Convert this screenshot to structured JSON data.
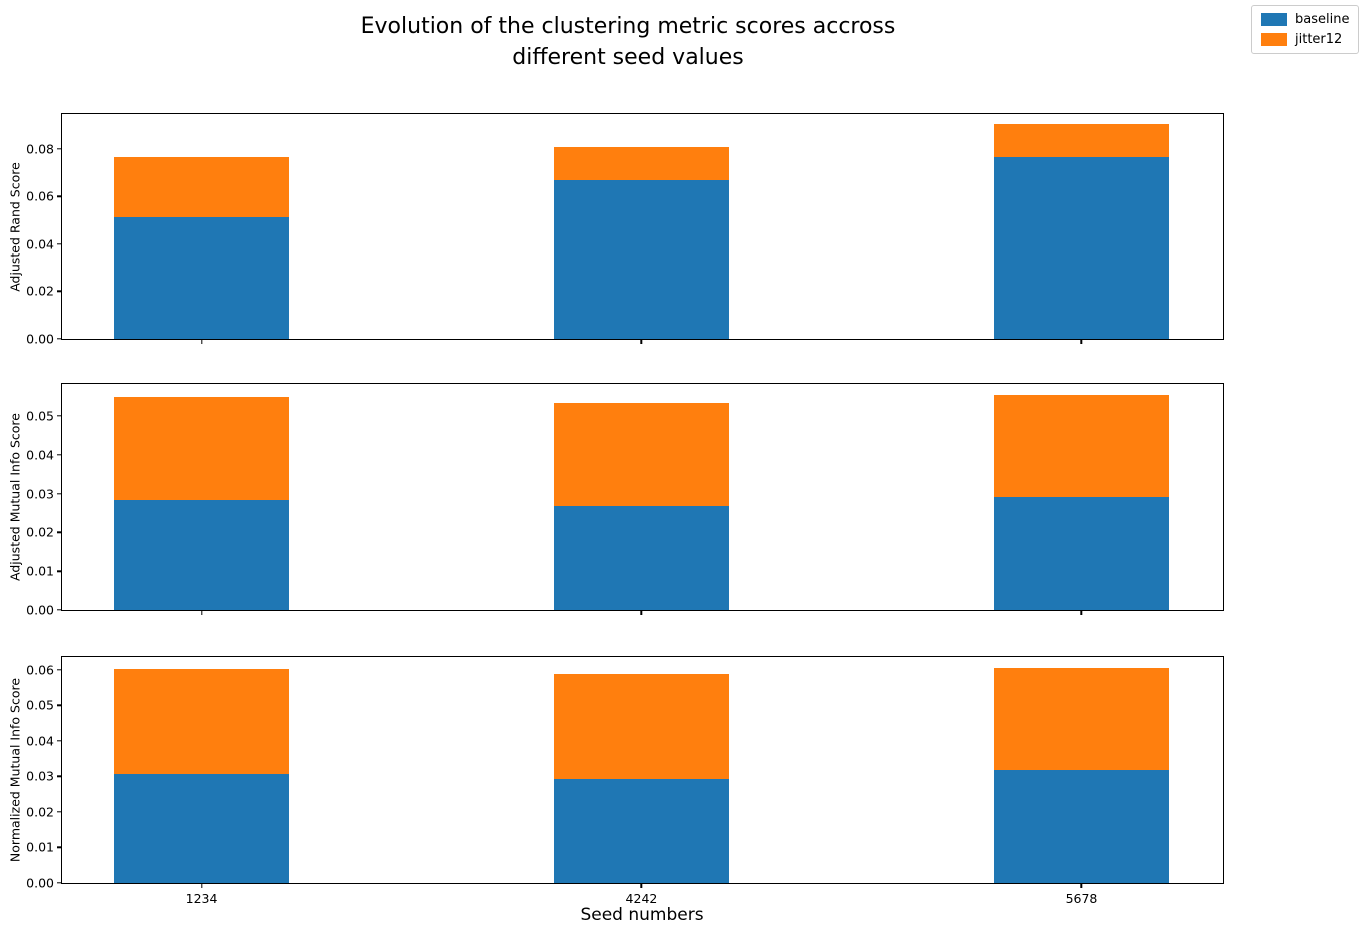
{
  "title": "Evolution of the clustering metric scores accross\ndifferent seed values",
  "xlabel": "Seed numbers",
  "legend": {
    "position": "upper-right-outside",
    "items": [
      {
        "label": "baseline",
        "color": "#1f77b4"
      },
      {
        "label": "jitter12",
        "color": "#ff7f0e"
      }
    ]
  },
  "chart_data": [
    {
      "type": "bar",
      "stacked": true,
      "ylabel": "Adjusted Rand Score",
      "xlabel": "",
      "categories": [
        "1234",
        "4242",
        "5678"
      ],
      "series": [
        {
          "name": "baseline",
          "color": "#1f77b4",
          "values": [
            0.0513,
            0.0669,
            0.0765
          ]
        },
        {
          "name": "jitter12",
          "color": "#ff7f0e",
          "values": [
            0.025,
            0.0139,
            0.0138
          ]
        }
      ],
      "stack_totals": [
        0.0763,
        0.0808,
        0.0903
      ],
      "ytick_values": [
        0,
        0.02,
        0.04,
        0.06,
        0.08
      ],
      "ytick_labels": [
        "0.00",
        "0.02",
        "0.04",
        "0.06",
        "0.08"
      ],
      "ylim": [
        0,
        0.0945
      ],
      "grid": false,
      "show_x_tick_labels": false
    },
    {
      "type": "bar",
      "stacked": true,
      "ylabel": "Adjusted Mutual Info Score",
      "xlabel": "",
      "categories": [
        "1234",
        "4242",
        "5678"
      ],
      "series": [
        {
          "name": "baseline",
          "color": "#1f77b4",
          "values": [
            0.0283,
            0.0269,
            0.0292
          ]
        },
        {
          "name": "jitter12",
          "color": "#ff7f0e",
          "values": [
            0.0266,
            0.0263,
            0.0262
          ]
        }
      ],
      "stack_totals": [
        0.0549,
        0.0532,
        0.0554
      ],
      "ytick_values": [
        0,
        0.01,
        0.02,
        0.03,
        0.04,
        0.05
      ],
      "ytick_labels": [
        "0.00",
        "0.01",
        "0.02",
        "0.03",
        "0.04",
        "0.05"
      ],
      "ylim": [
        0,
        0.0582
      ],
      "grid": false,
      "show_x_tick_labels": false
    },
    {
      "type": "bar",
      "stacked": true,
      "ylabel": "Normalized Mutual Info Score",
      "xlabel": "Seed numbers",
      "categories": [
        "1234",
        "4242",
        "5678"
      ],
      "series": [
        {
          "name": "baseline",
          "color": "#1f77b4",
          "values": [
            0.0307,
            0.0293,
            0.0318
          ]
        },
        {
          "name": "jitter12",
          "color": "#ff7f0e",
          "values": [
            0.0294,
            0.0295,
            0.0287
          ]
        }
      ],
      "stack_totals": [
        0.0601,
        0.0588,
        0.0605
      ],
      "ytick_values": [
        0,
        0.01,
        0.02,
        0.03,
        0.04,
        0.05,
        0.06
      ],
      "ytick_labels": [
        "0.00",
        "0.01",
        "0.02",
        "0.03",
        "0.04",
        "0.05",
        "0.06"
      ],
      "ylim": [
        0,
        0.0636
      ],
      "grid": false,
      "show_x_tick_labels": true
    }
  ]
}
